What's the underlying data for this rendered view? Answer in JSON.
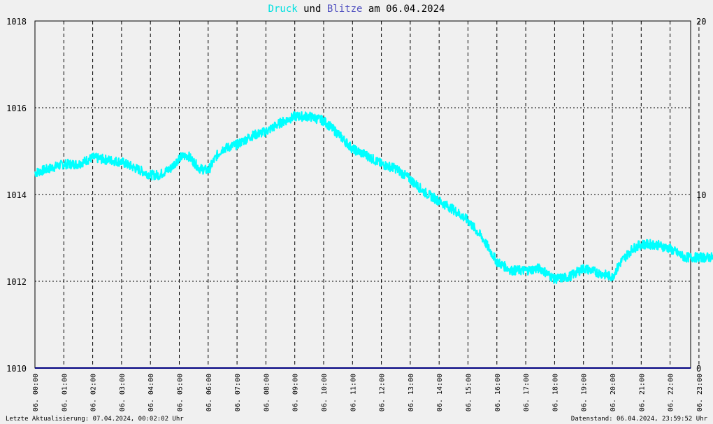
{
  "title_parts": {
    "druck": "Druck",
    "und": "und",
    "blitze": "Blitze",
    "rest": "am 06.04.2024"
  },
  "footer": {
    "left": "Letzte Aktualisierung: 07.04.2024, 00:02:02 Uhr",
    "right": "Datenstand: 06.04.2024, 23:59:52 Uhr"
  },
  "colors": {
    "druck": "#00ffff",
    "blitze": "#4040c0",
    "baseline": "#000080",
    "grid": "#000000",
    "background": "#f0f0f0"
  },
  "chart_data": {
    "type": "line",
    "x_tick_labels": [
      "06. 00:00",
      "06. 01:00",
      "06. 02:00",
      "06. 03:00",
      "06. 04:00",
      "06. 05:00",
      "06. 06:00",
      "06. 07:00",
      "06. 08:00",
      "06. 09:00",
      "06. 10:00",
      "06. 11:00",
      "06. 12:00",
      "06. 13:00",
      "06. 14:00",
      "06. 15:00",
      "06. 16:00",
      "06. 17:00",
      "06. 18:00",
      "06. 19:00",
      "06. 20:00",
      "06. 21:00",
      "06. 22:00",
      "06. 23:00"
    ],
    "y_left": {
      "ticks": [
        1010,
        1012,
        1014,
        1016,
        1018
      ],
      "ylim": [
        1010,
        1018
      ]
    },
    "y_right": {
      "ticks": [
        0,
        10,
        20
      ],
      "ylim": [
        0,
        20
      ]
    },
    "grid": true,
    "series": [
      {
        "name": "Druck",
        "axis": "left",
        "x_hours": [
          0,
          0.5,
          1,
          1.5,
          2,
          2.5,
          3,
          3.5,
          4,
          4.3,
          4.7,
          5,
          5.3,
          5.7,
          6,
          6.3,
          6.5,
          7,
          7.5,
          8,
          8.5,
          9,
          9.5,
          10,
          10.5,
          11,
          11.5,
          12,
          12.5,
          13,
          13.5,
          14,
          14.5,
          15,
          15.5,
          16,
          16.5,
          17,
          17.5,
          18,
          18.5,
          19,
          19.5,
          20,
          20.3,
          20.7,
          21,
          21.5,
          22,
          22.5,
          23,
          23.5,
          23.9
        ],
        "values": [
          1014.5,
          1014.6,
          1014.7,
          1014.7,
          1014.85,
          1014.8,
          1014.75,
          1014.6,
          1014.45,
          1014.45,
          1014.6,
          1014.85,
          1014.9,
          1014.6,
          1014.55,
          1014.9,
          1015.05,
          1015.15,
          1015.35,
          1015.45,
          1015.65,
          1015.8,
          1015.8,
          1015.7,
          1015.4,
          1015.05,
          1014.9,
          1014.7,
          1014.6,
          1014.35,
          1014.05,
          1013.85,
          1013.65,
          1013.4,
          1013.0,
          1012.45,
          1012.25,
          1012.25,
          1012.3,
          1012.05,
          1012.1,
          1012.3,
          1012.2,
          1012.1,
          1012.45,
          1012.75,
          1012.85,
          1012.85,
          1012.75,
          1012.55,
          1012.55,
          1012.55,
          1012.6
        ]
      },
      {
        "name": "Blitze",
        "axis": "right",
        "x_hours": [
          0,
          23.9
        ],
        "values": [
          0,
          0
        ]
      }
    ]
  }
}
